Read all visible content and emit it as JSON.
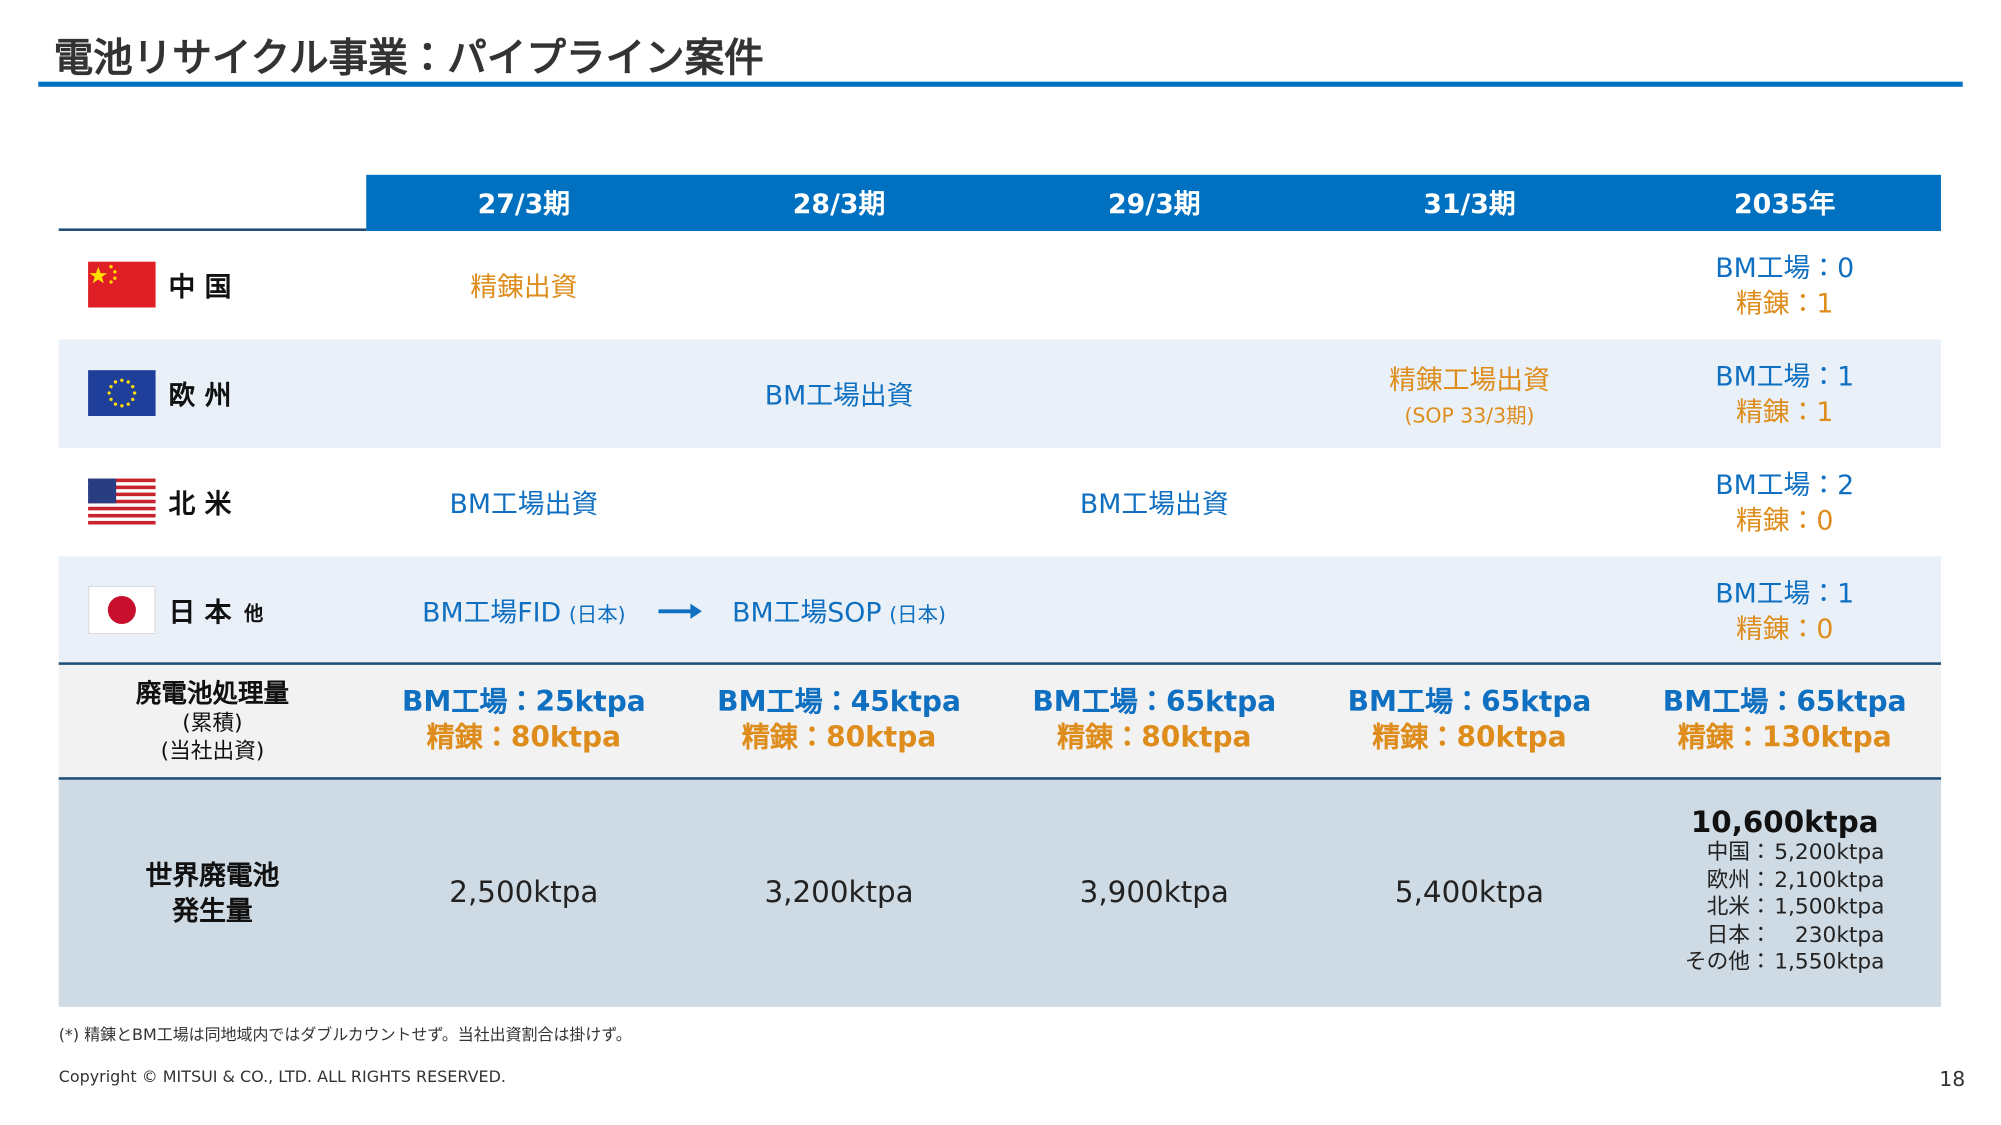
{
  "title": "電池リサイクル事業：パイプライン案件",
  "columns": [
    "27/3期",
    "28/3期",
    "29/3期",
    "31/3期",
    "2035年"
  ],
  "colors": {
    "bm": "#0f6fc0",
    "refine": "#de8d1c"
  },
  "regions": [
    {
      "label": "中 国",
      "cells": [
        {
          "text": "精錬出資",
          "color": "#de8d1c"
        },
        null,
        null,
        null
      ],
      "y2035": {
        "bm": "BM工場：0",
        "refine": "精錬：1"
      }
    },
    {
      "label": "欧 州",
      "cells": [
        null,
        {
          "text": "BM工場出資",
          "color": "#0f6fc0"
        },
        null,
        {
          "text": "精錬工場出資",
          "sub": "(SOP 33/3期)",
          "color": "#de8d1c"
        }
      ],
      "y2035": {
        "bm": "BM工場：1",
        "refine": "精錬：1"
      }
    },
    {
      "label": "北 米",
      "cells": [
        {
          "text": "BM工場出資",
          "color": "#0f6fc0"
        },
        null,
        {
          "text": "BM工場出資",
          "color": "#0f6fc0"
        },
        null
      ],
      "y2035": {
        "bm": "BM工場：2",
        "refine": "精錬：0"
      }
    },
    {
      "label": "日 本",
      "label_small": "他",
      "cells": [
        {
          "text": "BM工場FID",
          "note": "(日本)",
          "color": "#0f6fc0"
        },
        {
          "text": "BM工場SOP",
          "note": "(日本)",
          "color": "#0f6fc0"
        },
        null,
        null
      ],
      "y2035": {
        "bm": "BM工場：1",
        "refine": "精錬：0"
      }
    }
  ],
  "processing": {
    "label": [
      "廃電池処理量",
      "(累積)",
      "(当社出資)"
    ],
    "values": [
      {
        "bm": "BM工場：25ktpa",
        "refine": "精錬：80ktpa"
      },
      {
        "bm": "BM工場：45ktpa",
        "refine": "精錬：80ktpa"
      },
      {
        "bm": "BM工場：65ktpa",
        "refine": "精錬：80ktpa"
      },
      {
        "bm": "BM工場：65ktpa",
        "refine": "精錬：80ktpa"
      },
      {
        "bm": "BM工場：65ktpa",
        "refine": "精錬：130ktpa"
      }
    ]
  },
  "world": {
    "label": [
      "世界廃電池",
      "発生量"
    ],
    "values": [
      "2,500ktpa",
      "3,200ktpa",
      "3,900ktpa",
      "5,400ktpa"
    ],
    "total": "10,600ktpa",
    "breakdown": [
      {
        "region": "中国：",
        "value": "5,200ktpa"
      },
      {
        "region": "欧州：",
        "value": "2,100ktpa"
      },
      {
        "region": "北米：",
        "value": "1,500ktpa"
      },
      {
        "region": "日本：",
        "value": "230ktpa"
      },
      {
        "region": "その他：",
        "value": "1,550ktpa"
      }
    ]
  },
  "footnote": "(*) 精錬とBM工場は同地域内ではダブルカウントせず。当社出資割合は掛けず。",
  "copyright": "Copyright © MITSUI & CO., LTD. ALL RIGHTS RESERVED.",
  "page_number": "18"
}
